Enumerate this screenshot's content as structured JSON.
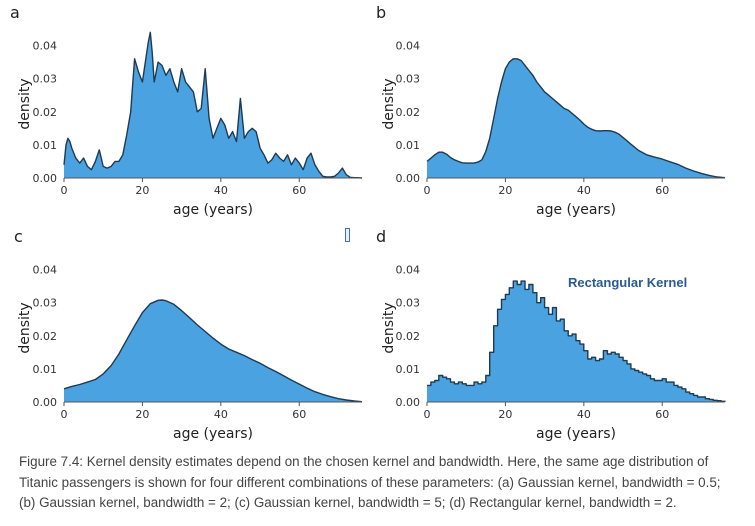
{
  "figure": {
    "caption": "Figure 7.4: Kernel density estimates depend on the chosen kernel and bandwidth. Here, the same age distribution of Titanic passengers is shown for four different combinations of these parameters: (a) Gaussian kernel, bandwidth = 0.5; (b) Gaussian kernel, bandwidth = 2; (c) Gaussian kernel, bandwidth = 5; (d) Rectangular kernel, bandwidth = 2.",
    "fill_color": "#4aa3e0",
    "line_color": "#1f3a52"
  },
  "chart_data": [
    {
      "type": "area",
      "panel": "a",
      "xlabel": "age (years)",
      "ylabel": "density",
      "xlim": [
        0,
        76
      ],
      "ylim": [
        0,
        0.045
      ],
      "xticks": [
        "0",
        "20",
        "40",
        "60"
      ],
      "yticks": [
        "0.00",
        "0.01",
        "0.02",
        "0.03",
        "0.04"
      ],
      "grid": false,
      "x": [
        0,
        0.5,
        1,
        1.5,
        2,
        3,
        4,
        5,
        6,
        7,
        8,
        9,
        10,
        11,
        12,
        13,
        14,
        15,
        16,
        17,
        17.5,
        18,
        19,
        20,
        21,
        21.5,
        22,
        22.5,
        23,
        24,
        25,
        26,
        27,
        28,
        29,
        30,
        31,
        32,
        33,
        34,
        35,
        36,
        37,
        38,
        39,
        40,
        41,
        42,
        43,
        44,
        45,
        46,
        47,
        48,
        49,
        50,
        51,
        52,
        53,
        54,
        55,
        56,
        57,
        58,
        59,
        60,
        61,
        62,
        63,
        64,
        65,
        66,
        67,
        68,
        69,
        70,
        71,
        72,
        73,
        74,
        75,
        76
      ],
      "y": [
        0.004,
        0.01,
        0.012,
        0.011,
        0.009,
        0.006,
        0.0045,
        0.006,
        0.0035,
        0.0025,
        0.005,
        0.0085,
        0.0035,
        0.003,
        0.0035,
        0.005,
        0.005,
        0.007,
        0.013,
        0.02,
        0.028,
        0.036,
        0.032,
        0.029,
        0.037,
        0.041,
        0.044,
        0.038,
        0.029,
        0.035,
        0.034,
        0.031,
        0.033,
        0.029,
        0.026,
        0.033,
        0.029,
        0.0275,
        0.026,
        0.02,
        0.021,
        0.033,
        0.018,
        0.012,
        0.015,
        0.018,
        0.016,
        0.012,
        0.014,
        0.011,
        0.024,
        0.012,
        0.014,
        0.015,
        0.014,
        0.009,
        0.007,
        0.0045,
        0.0055,
        0.0075,
        0.006,
        0.005,
        0.007,
        0.004,
        0.006,
        0.0045,
        0.0025,
        0.006,
        0.0075,
        0.004,
        0.002,
        0.0005,
        0.0003,
        0.0003,
        0.0005,
        0.0015,
        0.003,
        0.001,
        0.0002,
        0.0001,
        0.0001,
        0.0
      ]
    },
    {
      "type": "area",
      "panel": "b",
      "xlabel": "age (years)",
      "ylabel": "density",
      "xlim": [
        0,
        76
      ],
      "ylim": [
        0,
        0.045
      ],
      "xticks": [
        "0",
        "20",
        "40",
        "60"
      ],
      "yticks": [
        "0.00",
        "0.01",
        "0.02",
        "0.03",
        "0.04"
      ],
      "grid": false,
      "x": [
        0,
        1,
        2,
        3,
        4,
        5,
        6,
        7,
        8,
        9,
        10,
        11,
        12,
        13,
        14,
        15,
        16,
        17,
        18,
        19,
        20,
        21,
        22,
        23,
        24,
        25,
        26,
        27,
        28,
        29,
        30,
        31,
        32,
        33,
        34,
        35,
        36,
        37,
        38,
        39,
        40,
        41,
        42,
        43,
        44,
        45,
        46,
        47,
        48,
        49,
        50,
        52,
        54,
        56,
        58,
        60,
        62,
        64,
        66,
        68,
        70,
        72,
        74,
        76
      ],
      "y": [
        0.005,
        0.006,
        0.007,
        0.0078,
        0.0078,
        0.0072,
        0.0062,
        0.0055,
        0.005,
        0.0046,
        0.0045,
        0.0045,
        0.0045,
        0.0048,
        0.0055,
        0.008,
        0.012,
        0.018,
        0.024,
        0.029,
        0.033,
        0.035,
        0.036,
        0.036,
        0.0355,
        0.034,
        0.0325,
        0.031,
        0.029,
        0.0275,
        0.026,
        0.025,
        0.024,
        0.023,
        0.022,
        0.021,
        0.0205,
        0.0195,
        0.0185,
        0.0175,
        0.0163,
        0.0153,
        0.0147,
        0.0143,
        0.0142,
        0.0143,
        0.0143,
        0.0142,
        0.0138,
        0.0132,
        0.0122,
        0.0102,
        0.0083,
        0.007,
        0.0063,
        0.0057,
        0.0049,
        0.0041,
        0.003,
        0.0021,
        0.0014,
        0.0008,
        0.0003,
        0.0001
      ]
    },
    {
      "type": "area",
      "panel": "c",
      "xlabel": "age (years)",
      "ylabel": "density",
      "xlim": [
        0,
        76
      ],
      "ylim": [
        0,
        0.045
      ],
      "xticks": [
        "0",
        "20",
        "40",
        "60"
      ],
      "yticks": [
        "0.00",
        "0.01",
        "0.02",
        "0.03",
        "0.04"
      ],
      "grid": false,
      "x": [
        0,
        2,
        4,
        6,
        8,
        10,
        12,
        14,
        16,
        18,
        20,
        22,
        24,
        25,
        26,
        28,
        30,
        32,
        34,
        36,
        38,
        40,
        42,
        44,
        46,
        48,
        50,
        52,
        54,
        56,
        58,
        60,
        62,
        64,
        66,
        68,
        70,
        72,
        74,
        76
      ],
      "y": [
        0.004,
        0.0047,
        0.0053,
        0.006,
        0.0068,
        0.0085,
        0.011,
        0.0145,
        0.0188,
        0.023,
        0.027,
        0.0297,
        0.0307,
        0.0308,
        0.0306,
        0.0295,
        0.0276,
        0.0255,
        0.0233,
        0.0213,
        0.0193,
        0.0175,
        0.016,
        0.015,
        0.014,
        0.0128,
        0.0117,
        0.0104,
        0.0092,
        0.0079,
        0.0066,
        0.0054,
        0.0042,
        0.0031,
        0.0023,
        0.0016,
        0.001,
        0.0006,
        0.0003,
        0.0001
      ]
    },
    {
      "type": "area",
      "panel": "d",
      "xlabel": "age (years)",
      "ylabel": "density",
      "xlim": [
        0,
        76
      ],
      "ylim": [
        0,
        0.045
      ],
      "xticks": [
        "0",
        "20",
        "40",
        "60"
      ],
      "yticks": [
        "0.00",
        "0.01",
        "0.02",
        "0.03",
        "0.04"
      ],
      "grid": false,
      "annotation": "Rectangular Kernel",
      "x": [
        0,
        1,
        2,
        3,
        4,
        5,
        6,
        7,
        8,
        9,
        10,
        11,
        12,
        13,
        14,
        15,
        16,
        17,
        18,
        19,
        20,
        21,
        22,
        23,
        24,
        25,
        26,
        27,
        28,
        29,
        30,
        31,
        32,
        33,
        34,
        35,
        36,
        37,
        38,
        39,
        40,
        41,
        42,
        43,
        44,
        45,
        46,
        47,
        48,
        49,
        50,
        51,
        52,
        53,
        54,
        55,
        56,
        57,
        58,
        59,
        60,
        61,
        62,
        63,
        64,
        65,
        66,
        67,
        68,
        69,
        70,
        71,
        72,
        73,
        74,
        75,
        76
      ],
      "y": [
        0.005,
        0.006,
        0.0065,
        0.008,
        0.0075,
        0.007,
        0.006,
        0.0055,
        0.006,
        0.0055,
        0.005,
        0.005,
        0.006,
        0.0055,
        0.006,
        0.008,
        0.015,
        0.023,
        0.028,
        0.031,
        0.0325,
        0.0345,
        0.0365,
        0.0355,
        0.0365,
        0.034,
        0.0355,
        0.033,
        0.03,
        0.0315,
        0.0285,
        0.0265,
        0.0285,
        0.0245,
        0.025,
        0.0215,
        0.02,
        0.0205,
        0.0185,
        0.0175,
        0.0155,
        0.013,
        0.0135,
        0.0125,
        0.013,
        0.0155,
        0.0145,
        0.015,
        0.0145,
        0.0135,
        0.0125,
        0.0115,
        0.01,
        0.0095,
        0.009,
        0.0085,
        0.008,
        0.007,
        0.0065,
        0.0065,
        0.007,
        0.006,
        0.006,
        0.005,
        0.0045,
        0.004,
        0.003,
        0.0025,
        0.002,
        0.0015,
        0.0015,
        0.001,
        0.0008,
        0.0005,
        0.0004,
        0.0002,
        0.0001
      ]
    }
  ]
}
